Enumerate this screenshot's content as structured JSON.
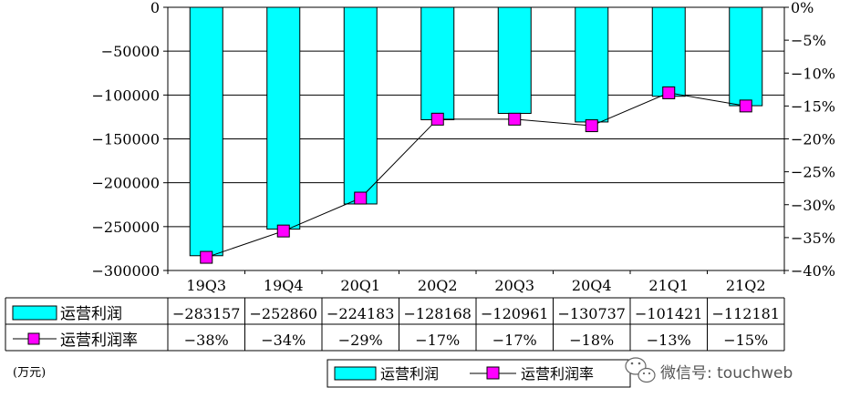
{
  "chart_data": {
    "type": "bar",
    "categories": [
      "19Q3",
      "19Q4",
      "20Q1",
      "20Q2",
      "20Q3",
      "20Q4",
      "21Q1",
      "21Q2"
    ],
    "series": [
      {
        "name": "运营利润",
        "type": "bar",
        "axis": "left",
        "values": [
          -283157,
          -252860,
          -224183,
          -128168,
          -120961,
          -130737,
          -101421,
          -112181
        ],
        "labels": [
          "−283157",
          "−252860",
          "−224183",
          "−128168",
          "−120961",
          "−130737",
          "−101421",
          "−112181"
        ]
      },
      {
        "name": "运营利润率",
        "type": "line",
        "axis": "right",
        "values": [
          -38,
          -34,
          -29,
          -17,
          -17,
          -18,
          -13,
          -15
        ],
        "labels": [
          "−38%",
          "−34%",
          "−29%",
          "−17%",
          "−17%",
          "−18%",
          "−13%",
          "−15%"
        ]
      }
    ],
    "ylim_left": [
      -300000,
      0
    ],
    "ylim_right": [
      -40,
      0
    ],
    "yticks_left": [
      "0",
      "−50000",
      "−100000",
      "−150000",
      "−200000",
      "−250000",
      "−300000"
    ],
    "yticks_right": [
      "0%",
      "−5%",
      "−10%",
      "−15%",
      "−20%",
      "−25%",
      "−30%",
      "−35%",
      "−40%"
    ],
    "grid": true,
    "legend": "bottom-center",
    "unit_note": "(万元)",
    "colors": {
      "bar": "#00ffff",
      "line": "#000000",
      "marker": "#ff00ff"
    }
  },
  "watermark": {
    "text": "微信号: touchweb"
  }
}
